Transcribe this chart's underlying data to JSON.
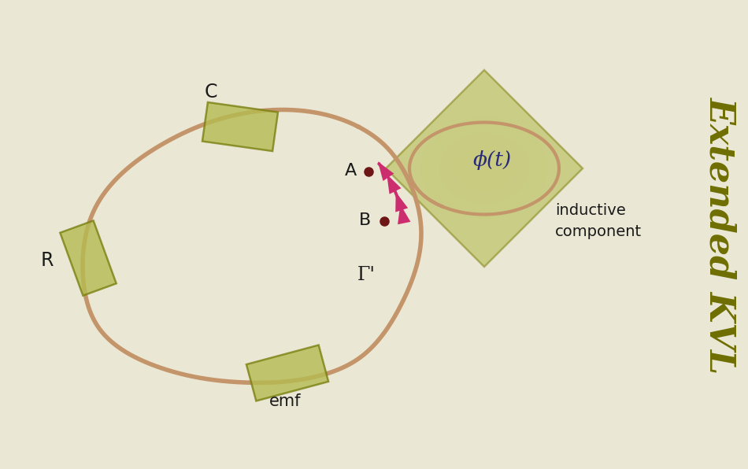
{
  "background_color": "#eae8d5",
  "circuit_color": "#c4956a",
  "circuit_lw": 4.0,
  "dashed_color": "#cc2d6e",
  "dashed_lw": 2.8,
  "component_fill": "#b5bc52",
  "component_fill_alpha": 0.8,
  "component_edge": "#7a8010",
  "inductor_fill": "#b5bc52",
  "inductor_fill_alpha": 0.6,
  "inductor_edge": "#8a8a20",
  "inner_fill": "#c8cb80",
  "point_color": "#6e1515",
  "label_A": "A",
  "label_B": "B",
  "label_C": "C",
  "label_R": "R",
  "label_emf": "emf",
  "label_gamma": "Γ'",
  "label_phi": "ϕ(t)",
  "label_inductive": "inductive\ncomponent",
  "label_extended": "Extended KVL",
  "extended_color": "#6e6e00",
  "phi_color": "#2a2a7a",
  "text_color": "#1a1a1a",
  "circuit_pts": [
    [
      4.55,
      4.35
    ],
    [
      3.3,
      4.55
    ],
    [
      2.1,
      4.15
    ],
    [
      1.2,
      3.3
    ],
    [
      1.05,
      2.55
    ],
    [
      1.25,
      1.8
    ],
    [
      2.0,
      1.3
    ],
    [
      3.1,
      1.1
    ],
    [
      3.9,
      1.15
    ],
    [
      4.55,
      1.4
    ],
    [
      5.1,
      2.1
    ],
    [
      5.35,
      3.0
    ],
    [
      5.15,
      3.75
    ],
    [
      4.9,
      4.1
    ],
    [
      4.55,
      4.35
    ]
  ]
}
